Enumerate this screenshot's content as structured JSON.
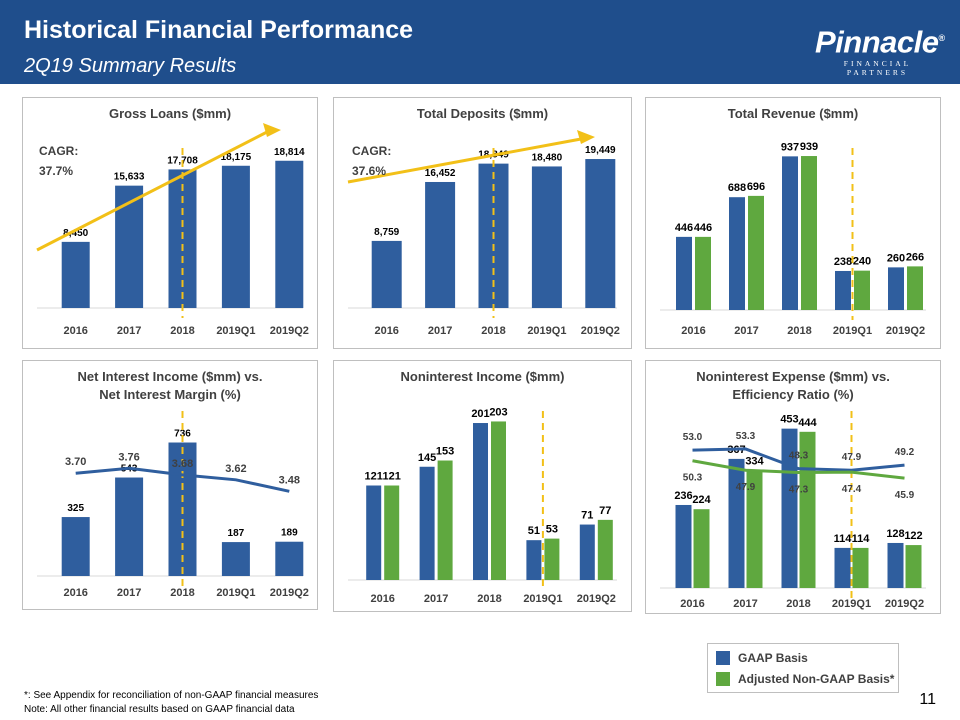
{
  "header": {
    "title": "Historical Financial Performance",
    "subtitle": "2Q19 Summary Results",
    "logo_name": "Pinnacle",
    "logo_mark": "®",
    "logo_tag": "FINANCIAL PARTNERS"
  },
  "colors": {
    "gaap": "#2f5e9e",
    "adjusted": "#5fa83f",
    "arrow": "#f2c018",
    "divider": "#f2c018",
    "header": "#1f4e8c"
  },
  "chart_data": [
    {
      "id": "gross-loans",
      "type": "bar",
      "title": "Gross Loans ($mm)",
      "categories": [
        "2016",
        "2017",
        "2018",
        "2019Q1",
        "2019Q2"
      ],
      "series": [
        {
          "name": "GAAP Basis",
          "values": [
            8450,
            15633,
            17708,
            18175,
            18814
          ],
          "labels": [
            "8,450",
            "15,633",
            "17,708",
            "18,175",
            "18,814"
          ]
        }
      ],
      "ylim": [
        0,
        23000
      ],
      "annotation": {
        "label": "CAGR:",
        "value": "37.7%"
      }
    },
    {
      "id": "total-deposits",
      "type": "bar",
      "title": "Total Deposits ($mm)",
      "categories": [
        "2016",
        "2017",
        "2018",
        "2019Q1",
        "2019Q2"
      ],
      "series": [
        {
          "name": "GAAP Basis",
          "values": [
            8759,
            16452,
            18849,
            18480,
            19449
          ],
          "labels": [
            "8,759",
            "16,452",
            "18,849",
            "18,480",
            "19,449"
          ]
        }
      ],
      "ylim": [
        0,
        23500
      ],
      "annotation": {
        "label": "CAGR:",
        "value": "37.6%"
      }
    },
    {
      "id": "total-revenue",
      "type": "bar",
      "title": "Total Revenue ($mm)",
      "categories": [
        "2016",
        "2017",
        "2018",
        "2019Q1",
        "2019Q2"
      ],
      "series": [
        {
          "name": "GAAP Basis",
          "values": [
            446,
            688,
            937,
            238,
            260
          ],
          "labels": [
            "446",
            "688",
            "937",
            "238",
            "260"
          ]
        },
        {
          "name": "Adjusted Non-GAAP Basis*",
          "values": [
            446,
            696,
            939,
            240,
            266
          ],
          "labels": [
            "446",
            "696",
            "939",
            "240",
            "266"
          ]
        }
      ],
      "ylim": [
        0,
        1110
      ]
    },
    {
      "id": "net-interest-income",
      "type": "bar",
      "title": "Net Interest Income ($mm) vs.",
      "title2": "Net Interest Margin (%)",
      "categories": [
        "2016",
        "2017",
        "2018",
        "2019Q1",
        "2019Q2"
      ],
      "series": [
        {
          "name": "GAAP Basis",
          "values": [
            325,
            543,
            736,
            187,
            189
          ],
          "labels": [
            "325",
            "543",
            "736",
            "187",
            "189"
          ]
        }
      ],
      "ylim": [
        0,
        1020
      ],
      "line": {
        "name": "Net Interest Margin (%)",
        "values": [
          3.7,
          3.76,
          3.68,
          3.62,
          3.48
        ],
        "labels": [
          "3.70",
          "3.76",
          "3.68",
          "3.62",
          "3.48"
        ],
        "range": [
          2.45,
          4.7
        ]
      }
    },
    {
      "id": "noninterest-income",
      "type": "bar",
      "title": "Noninterest Income ($mm)",
      "categories": [
        "2016",
        "2017",
        "2018",
        "2019Q1",
        "2019Q2"
      ],
      "series": [
        {
          "name": "GAAP Basis",
          "values": [
            121,
            145,
            201,
            51,
            71
          ],
          "labels": [
            "121",
            "145",
            "201",
            "51",
            "71"
          ]
        },
        {
          "name": "Adjusted Non-GAAP Basis*",
          "values": [
            121,
            153,
            203,
            53,
            77
          ],
          "labels": [
            "121",
            "153",
            "203",
            "53",
            "77"
          ]
        }
      ],
      "ylim": [
        0,
        242
      ]
    },
    {
      "id": "noninterest-expense",
      "type": "bar",
      "title": "Noninterest Expense ($mm) vs.",
      "title2": "Efficiency Ratio (%)",
      "categories": [
        "2016",
        "2017",
        "2018",
        "2019Q1",
        "2019Q2"
      ],
      "series": [
        {
          "name": "GAAP Basis",
          "values": [
            236,
            367,
            453,
            114,
            128
          ],
          "labels": [
            "236",
            "367",
            "453",
            "114",
            "128"
          ]
        },
        {
          "name": "Adjusted Non-GAAP Basis*",
          "values": [
            224,
            334,
            444,
            114,
            122
          ],
          "labels": [
            "224",
            "334",
            "444",
            "114",
            "122"
          ]
        }
      ],
      "ylim": [
        0,
        560
      ],
      "lines": [
        {
          "name": "Efficiency Ratio GAAP",
          "values": [
            53.0,
            53.3,
            48.3,
            47.9,
            49.2
          ],
          "labels": [
            "53.0",
            "53.3",
            "48.3",
            "47.9",
            "49.2"
          ]
        },
        {
          "name": "Efficiency Ratio Adjusted",
          "values": [
            50.3,
            47.9,
            47.3,
            47.4,
            45.9
          ],
          "labels": [
            "50.3",
            "47.9",
            "47.3",
            "47.4",
            "45.9"
          ]
        }
      ],
      "line_range": [
        18,
        68
      ]
    }
  ],
  "legend": {
    "gaap_label": "GAAP Basis",
    "adjusted_label": "Adjusted Non-GAAP Basis*"
  },
  "footnotes": {
    "note1": "*: See Appendix for reconciliation of non-GAAP financial measures",
    "note2": "Note: All other financial results based on GAAP financial data"
  },
  "page_number": "11"
}
